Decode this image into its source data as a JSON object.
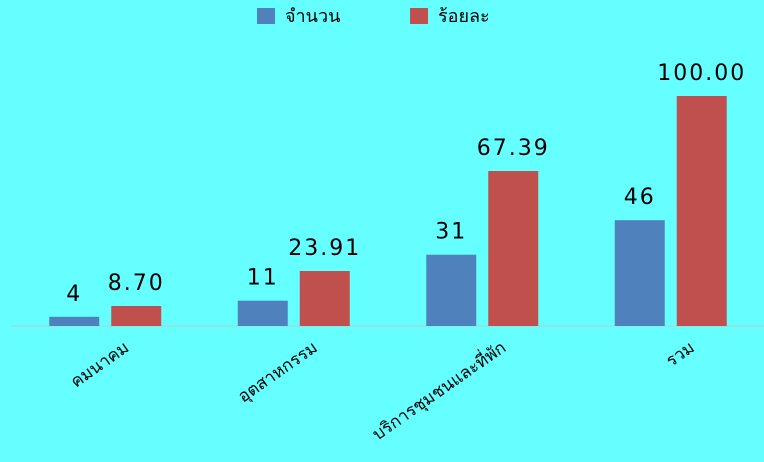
{
  "chart_data": {
    "type": "bar",
    "categories": [
      "คมนาคม",
      "อุตสาหกรรม",
      "บริการชุมชนและที่พัก",
      "รวม"
    ],
    "series": [
      {
        "name": "จำนวน",
        "color": "#4f81bd",
        "values": [
          4,
          11,
          31,
          46
        ]
      },
      {
        "name": "ร้อยละ",
        "color": "#c0504d",
        "values": [
          8.7,
          23.91,
          67.39,
          100
        ],
        "value_labels": [
          "8.70",
          "23.91",
          "67.39",
          "100.00"
        ]
      }
    ],
    "legend": "top"
  }
}
